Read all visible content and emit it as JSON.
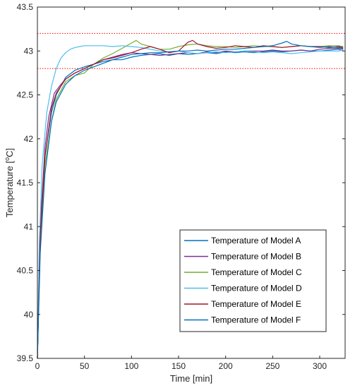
{
  "chart_data": {
    "type": "line",
    "title": "",
    "xlabel": "Time [min]",
    "ylabel": "Temperature [°C]",
    "ylabel_parts": {
      "main": "Temperature [",
      "sup": "o",
      "unit": "C]"
    },
    "xlim": [
      0,
      327
    ],
    "ylim": [
      39.5,
      43.5
    ],
    "xticks": [
      0,
      50,
      100,
      150,
      200,
      250,
      300
    ],
    "yticks": [
      39.5,
      40,
      40.5,
      41,
      41.5,
      42,
      42.5,
      43,
      43.5
    ],
    "xtick_labels": [
      "0",
      "50",
      "100",
      "150",
      "200",
      "250",
      "300"
    ],
    "ytick_labels": [
      "39.5",
      "40",
      "40.5",
      "41",
      "41.5",
      "42",
      "42.5",
      "43",
      "43.5"
    ],
    "grid": false,
    "legend_position": "bottom-right",
    "reference_lines": [
      {
        "y": 43.2,
        "style": "dotted",
        "color": "#ff0000"
      },
      {
        "y": 42.8,
        "style": "dotted",
        "color": "#ff0000"
      }
    ],
    "series": [
      {
        "name": "Temperature of Model A",
        "color": "#0072BD",
        "x": [
          0,
          3,
          8,
          15,
          20,
          30,
          40,
          50,
          60,
          70,
          80,
          90,
          100,
          110,
          120,
          130,
          140,
          150,
          160,
          170,
          180,
          190,
          200,
          210,
          220,
          230,
          240,
          250,
          260,
          270,
          280,
          290,
          300,
          310,
          320,
          325
        ],
        "y": [
          39.5,
          40.9,
          41.8,
          42.3,
          42.5,
          42.7,
          42.78,
          42.82,
          42.85,
          42.88,
          42.9,
          42.9,
          42.93,
          42.95,
          42.96,
          42.97,
          42.95,
          42.97,
          42.96,
          42.97,
          42.98,
          42.97,
          42.99,
          42.98,
          42.99,
          42.98,
          42.99,
          43.0,
          42.99,
          43.0,
          43.01,
          43.0,
          43.0,
          43.01,
          43.02,
          43.0
        ]
      },
      {
        "name": "Temperature of Model B",
        "color": "#7E2F8E",
        "x": [
          0,
          3,
          8,
          12,
          18,
          25,
          30,
          40,
          50,
          60,
          70,
          80,
          90,
          100,
          110,
          120,
          130,
          140,
          150,
          160,
          170,
          180,
          190,
          200,
          210,
          220,
          230,
          240,
          250,
          260,
          270,
          280,
          290,
          300,
          310,
          320,
          325
        ],
        "y": [
          39.5,
          41.0,
          41.9,
          42.25,
          42.52,
          42.62,
          42.68,
          42.75,
          42.8,
          42.85,
          42.9,
          42.93,
          42.96,
          42.98,
          42.97,
          42.96,
          42.95,
          42.96,
          42.97,
          42.98,
          42.97,
          42.99,
          42.98,
          43.0,
          42.99,
          43.0,
          43.0,
          43.0,
          43.01,
          43.0,
          43.0,
          43.01,
          43.0,
          43.02,
          43.03,
          43.03,
          43.02
        ]
      },
      {
        "name": "Temperature of Model C",
        "color": "#77AC30",
        "x": [
          0,
          3,
          8,
          15,
          20,
          30,
          40,
          50,
          60,
          70,
          80,
          90,
          100,
          105,
          110,
          120,
          130,
          140,
          150,
          160,
          170,
          180,
          190,
          200,
          210,
          220,
          230,
          240,
          250,
          260,
          270,
          280,
          290,
          300,
          310,
          320,
          325
        ],
        "y": [
          39.5,
          40.8,
          41.7,
          42.2,
          42.45,
          42.65,
          42.72,
          42.75,
          42.85,
          42.92,
          42.97,
          43.03,
          43.09,
          43.12,
          43.08,
          43.05,
          43.02,
          43.02,
          43.05,
          43.07,
          43.08,
          43.06,
          43.05,
          43.05,
          43.04,
          43.05,
          43.06,
          43.05,
          43.05,
          43.04,
          43.05,
          43.06,
          43.05,
          43.05,
          43.06,
          43.06,
          43.05
        ]
      },
      {
        "name": "Temperature of Model D",
        "color": "#4DBEEE",
        "x": [
          0,
          2,
          5,
          10,
          15,
          20,
          25,
          30,
          35,
          40,
          45,
          50,
          60,
          70,
          80,
          90,
          100,
          110,
          120,
          130,
          140,
          150,
          160,
          170,
          180,
          190,
          200,
          210,
          220,
          230,
          240,
          250,
          260,
          270,
          280,
          290,
          300,
          310,
          320,
          325
        ],
        "y": [
          39.5,
          40.8,
          41.7,
          42.3,
          42.6,
          42.8,
          42.92,
          42.98,
          43.02,
          43.04,
          43.05,
          43.06,
          43.06,
          43.06,
          43.05,
          43.06,
          43.05,
          43.04,
          43.02,
          43.0,
          42.99,
          43.0,
          42.98,
          42.97,
          42.98,
          42.99,
          42.98,
          42.99,
          43.0,
          42.99,
          42.98,
          42.99,
          42.98,
          42.97,
          42.98,
          42.99,
          43.0,
          43.0,
          43.0,
          43.01
        ]
      },
      {
        "name": "Temperature of Model E",
        "color": "#A2142F",
        "x": [
          0,
          3,
          8,
          15,
          20,
          30,
          40,
          50,
          60,
          70,
          80,
          90,
          100,
          110,
          120,
          130,
          140,
          150,
          160,
          165,
          170,
          180,
          190,
          200,
          210,
          220,
          230,
          240,
          250,
          260,
          270,
          280,
          290,
          300,
          310,
          320,
          325
        ],
        "y": [
          39.5,
          40.9,
          41.8,
          42.35,
          42.52,
          42.68,
          42.75,
          42.8,
          42.85,
          42.9,
          42.92,
          42.95,
          42.98,
          43.02,
          43.05,
          43.02,
          42.98,
          43.0,
          43.1,
          43.12,
          43.08,
          43.05,
          43.03,
          43.04,
          43.06,
          43.05,
          43.04,
          43.06,
          43.05,
          43.04,
          43.05,
          43.06,
          43.05,
          43.05,
          43.04,
          43.05,
          43.04
        ]
      },
      {
        "name": "Temperature of Model F",
        "color": "#0072BD",
        "x": [
          0,
          3,
          8,
          15,
          20,
          30,
          40,
          50,
          60,
          70,
          80,
          90,
          100,
          110,
          120,
          130,
          140,
          150,
          160,
          170,
          180,
          190,
          200,
          210,
          220,
          230,
          240,
          250,
          260,
          265,
          270,
          280,
          290,
          300,
          310,
          320,
          325
        ],
        "y": [
          39.5,
          40.7,
          41.6,
          42.2,
          42.42,
          42.62,
          42.72,
          42.78,
          42.82,
          42.86,
          42.9,
          42.93,
          42.96,
          42.97,
          42.98,
          42.98,
          42.99,
          43.0,
          43.0,
          43.01,
          43.0,
          43.01,
          43.02,
          43.02,
          43.03,
          43.04,
          43.05,
          43.06,
          43.09,
          43.11,
          43.08,
          43.06,
          43.05,
          43.04,
          43.05,
          43.04,
          43.03
        ]
      }
    ]
  }
}
